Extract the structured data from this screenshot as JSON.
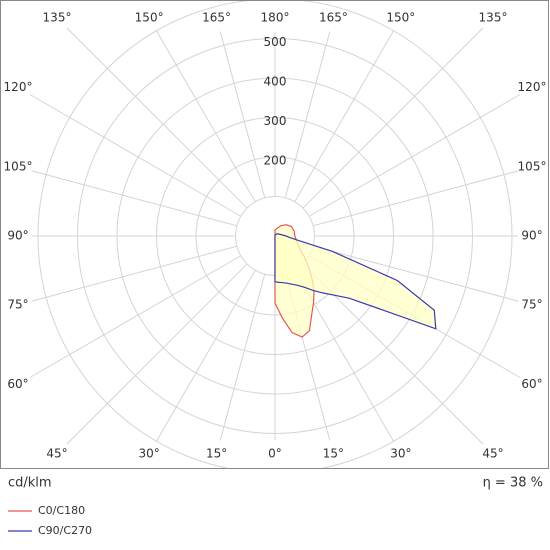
{
  "chart_data": {
    "type": "polar",
    "x": [
      0,
      5,
      10,
      15,
      20,
      25,
      30,
      35,
      40,
      45,
      50,
      55,
      60,
      65,
      70,
      75,
      80,
      85,
      90,
      105,
      120,
      135,
      150,
      165,
      180
    ],
    "series": [
      {
        "name": "C0/C180",
        "color": "#e05a5a",
        "values": [
          170,
          208,
          248,
          265,
          255,
          220,
          195,
          172,
          148,
          124,
          105,
          90,
          75,
          68,
          62,
          58,
          55,
          52,
          50,
          50,
          48,
          40,
          30,
          20,
          15
        ]
      },
      {
        "name": "C90/C270",
        "color": "#3a3ab0",
        "values": [
          116,
          118,
          120,
          124,
          130,
          138,
          150,
          168,
          188,
          212,
          245,
          320,
          470,
          445,
          330,
          150,
          55,
          35,
          28,
          15,
          10,
          8,
          5,
          3,
          2
        ]
      }
    ],
    "fill_color": "#ffffc4",
    "rlim": [
      0,
      600
    ],
    "rgrid": [
      100,
      200,
      300,
      400,
      500,
      600
    ],
    "rticks": [
      200,
      300,
      400,
      500
    ],
    "theta_ticks": [
      {
        "value": 0,
        "label": "0°"
      },
      {
        "value": 15,
        "label": "15°"
      },
      {
        "value": 30,
        "label": "30°"
      },
      {
        "value": 45,
        "label": "45°"
      },
      {
        "value": 60,
        "label": "60°"
      },
      {
        "value": 75,
        "label": "75°"
      },
      {
        "value": 90,
        "label": "90°"
      },
      {
        "value": 105,
        "label": "105°"
      },
      {
        "value": 120,
        "label": "120°"
      },
      {
        "value": 135,
        "label": "135°"
      },
      {
        "value": 150,
        "label": "150°"
      },
      {
        "value": 165,
        "label": "165°"
      },
      {
        "value": 180,
        "label": "180°"
      }
    ],
    "unit_label": "cd/klm",
    "efficiency_label": "η = 38 %"
  }
}
